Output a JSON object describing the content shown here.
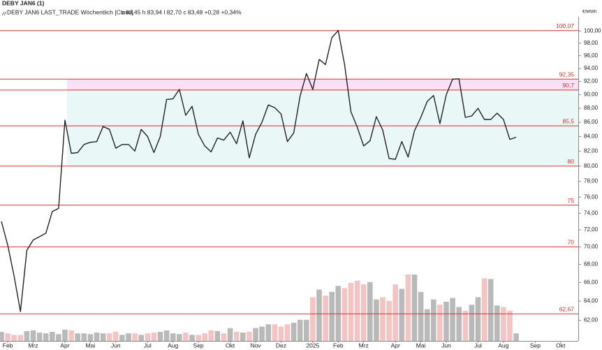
{
  "chart_data": {
    "type": "line",
    "title": "DEBY JAN6 (1)",
    "unit": "€/MWh",
    "quote": "o 83,45 h 83,94 l 82,70 c 83,48 +0,28 +0,34%",
    "quote_color": "#2a9d2a",
    "log_scale": true,
    "ylim": [
      60,
      103.8
    ],
    "yticks": [
      {
        "value": 100,
        "label": "100,00"
      },
      {
        "value": 98,
        "label": "98,00"
      },
      {
        "value": 96,
        "label": "96,00"
      },
      {
        "value": 94,
        "label": "94,00"
      },
      {
        "value": 92,
        "label": "92,00"
      },
      {
        "value": 90,
        "label": "90,00"
      },
      {
        "value": 88,
        "label": "88,00"
      },
      {
        "value": 86,
        "label": "86,00"
      },
      {
        "value": 84,
        "label": "84,00"
      },
      {
        "value": 82,
        "label": "82,00"
      },
      {
        "value": 80,
        "label": "80,00"
      },
      {
        "value": 78,
        "label": "78,00"
      },
      {
        "value": 76,
        "label": "76,00"
      },
      {
        "value": 74,
        "label": "74,00"
      },
      {
        "value": 72,
        "label": "72,00"
      },
      {
        "value": 70,
        "label": "70,00"
      },
      {
        "value": 68,
        "label": "68,00"
      },
      {
        "value": 66,
        "label": "66,00"
      },
      {
        "value": 64,
        "label": "64,00"
      },
      {
        "value": 62,
        "label": "62,00"
      }
    ],
    "categories": [
      null,
      "Feb",
      null,
      null,
      null,
      "Mrz",
      null,
      null,
      null,
      null,
      "Apr",
      null,
      null,
      null,
      "Mai",
      null,
      null,
      null,
      "Jun",
      null,
      null,
      null,
      null,
      "Jul",
      null,
      null,
      null,
      "Aug",
      null,
      null,
      null,
      "Sep",
      null,
      null,
      null,
      null,
      "Okt",
      null,
      null,
      null,
      "Nov",
      null,
      null,
      null,
      "Dez",
      null,
      null,
      null,
      null,
      "2025",
      null,
      null,
      null,
      "Feb",
      null,
      null,
      null,
      "Mrz",
      null,
      null,
      null,
      null,
      "Apr",
      null,
      null,
      null,
      "Mai",
      null,
      null,
      null,
      "Jun",
      null,
      null,
      null,
      null,
      "Jul",
      null,
      null,
      null,
      "Aug",
      null,
      null,
      null,
      null,
      "Sep",
      null,
      null,
      null,
      "Okt",
      null,
      null,
      null
    ],
    "series": [
      {
        "name": "DEBY JAN6 LAST_TRADE Wöchentlich [Close]",
        "color": "#222222",
        "values": [
          73.0,
          70.2,
          66.7,
          62.9,
          69.6,
          70.8,
          71.2,
          71.6,
          74.2,
          74.6,
          86.3,
          81.7,
          81.8,
          82.9,
          83.2,
          83.3,
          85.4,
          85.0,
          82.4,
          82.9,
          82.9,
          82.0,
          85.0,
          84.0,
          81.8,
          84.0,
          89.3,
          89.4,
          90.8,
          87.0,
          88.3,
          84.3,
          82.7,
          81.9,
          83.8,
          83.5,
          84.6,
          83.0,
          86.2,
          81.1,
          84.3,
          86.0,
          88.5,
          88.1,
          87.2,
          83.3,
          84.5,
          89.8,
          93.2,
          90.8,
          95.4,
          94.6,
          98.9,
          100.07,
          94.6,
          87.5,
          85.3,
          82.7,
          83.4,
          86.8,
          84.9,
          81.0,
          80.9,
          83.3,
          81.2,
          84.8,
          86.7,
          89.0,
          89.9,
          85.8,
          90.0,
          92.35,
          92.4,
          86.7,
          86.9,
          88.0,
          86.4,
          86.4,
          87.3,
          86.4,
          83.6,
          83.9,
          null,
          null,
          null,
          null,
          null,
          null,
          null,
          null,
          null,
          null
        ]
      }
    ],
    "volume": [
      12,
      10,
      8,
      8,
      13,
      14,
      11,
      10,
      12,
      9,
      15,
      14,
      10,
      10,
      9,
      11,
      10,
      10,
      12,
      8,
      10,
      10,
      8,
      10,
      11,
      12,
      14,
      10,
      9,
      11,
      8,
      8,
      10,
      14,
      13,
      10,
      17,
      12,
      11,
      12,
      17,
      19,
      22,
      22,
      19,
      22,
      24,
      28,
      28,
      58,
      68,
      60,
      65,
      73,
      70,
      77,
      80,
      75,
      78,
      55,
      58,
      53,
      75,
      69,
      88,
      88,
      65,
      42,
      55,
      48,
      52,
      57,
      45,
      40,
      48,
      58,
      83,
      82,
      47,
      45,
      40,
      10,
      null,
      null,
      null,
      null,
      null,
      null,
      null,
      null,
      null,
      null
    ],
    "volume_up_color": "#b9b9b9",
    "volume_down_color": "#f2c4c4",
    "levels": [
      {
        "value": 100.07,
        "label": "100,07"
      },
      {
        "value": 92.35,
        "label": "92,35"
      },
      {
        "value": 90.7,
        "label": "90,7"
      },
      {
        "value": 85.5,
        "label": "85,5"
      },
      {
        "value": 80,
        "label": "80"
      },
      {
        "value": 75,
        "label": "75"
      },
      {
        "value": 70,
        "label": "70"
      },
      {
        "value": 62.67,
        "label": "62,67"
      }
    ],
    "level_color": "#d9302b",
    "zones": [
      {
        "from": 80,
        "to": 90.7,
        "color": "#e9f7f7"
      },
      {
        "from": 90.7,
        "to": 92.35,
        "color": "#fde0f4"
      }
    ]
  }
}
